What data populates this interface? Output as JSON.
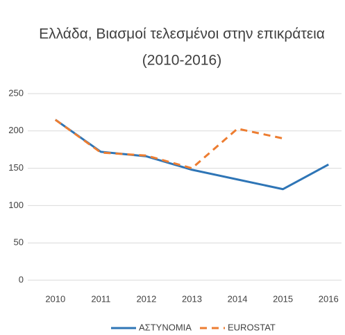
{
  "chart_data": {
    "type": "line",
    "title": "Ελλάδα, Βιασμοί τελεσμένοι στην επικράτεια",
    "subtitle": "(2010-2016)",
    "categories": [
      "2010",
      "2011",
      "2012",
      "2013",
      "2014",
      "2015",
      "2016"
    ],
    "series": [
      {
        "name": "ΑΣΤΥΝΟΜΙΑ",
        "color": "#2e75b6",
        "dashed": false,
        "values": [
          215,
          172,
          166,
          148,
          135,
          122,
          155
        ]
      },
      {
        "name": "EUROSTAT",
        "color": "#ed7d31",
        "dashed": true,
        "values": [
          215,
          171,
          167,
          150,
          203,
          190,
          null
        ]
      }
    ],
    "ylim": [
      0,
      250
    ],
    "yticks": [
      0,
      50,
      100,
      150,
      200,
      250
    ],
    "grid": true,
    "legend": "bottom"
  }
}
